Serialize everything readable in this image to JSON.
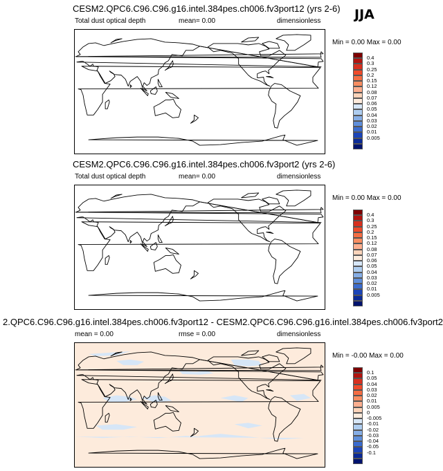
{
  "season_label": "JJA",
  "panels": [
    {
      "title": "CESM2.QPC6.C96.C96.g16.intel.384pes.ch006.fv3port12 (yrs 2-6)",
      "field_label": "Total dust optical depth",
      "stat_label": "mean=  0.00",
      "units": "dimensionless",
      "min_label": "Min =",
      "min_value": "0.00",
      "max_label": "Max =",
      "max_value": "0.00",
      "fill": "none",
      "colorbar_labels": [
        "0.4",
        "0.3",
        "0.25",
        "0.2",
        "0.15",
        "0.12",
        "0.08",
        "0.07",
        "0.06",
        "0.05",
        "0.04",
        "0.03",
        "0.02",
        "0.01",
        "0.005"
      ]
    },
    {
      "title": "CESM2.QPC6.C96.C96.g16.intel.384pes.ch006.fv3port2 (yrs 2-6)",
      "field_label": "Total dust optical depth",
      "stat_label": "mean=  0.00",
      "units": "dimensionless",
      "min_label": "Min =",
      "min_value": "0.00",
      "max_label": "Max =",
      "max_value": "0.00",
      "fill": "none",
      "colorbar_labels": [
        "0.4",
        "0.3",
        "0.25",
        "0.2",
        "0.15",
        "0.12",
        "0.08",
        "0.07",
        "0.06",
        "0.05",
        "0.04",
        "0.03",
        "0.02",
        "0.01",
        "0.005"
      ]
    },
    {
      "title": "2.QPC6.C96.C96.g16.intel.384pes.ch006.fv3port12 - CESM2.QPC6.C96.C96.g16.intel.384pes.ch006.fv3port2",
      "field_label": "mean =   0.00",
      "stat_label": "rmse =   0.00",
      "units": "dimensionless",
      "min_label": "Min =",
      "min_value": "-0.00",
      "max_label": "Max =",
      "max_value": "0.00",
      "fill": "diff",
      "colorbar_labels": [
        "0.1",
        "0.05",
        "0.04",
        "0.03",
        "0.02",
        "0.01",
        "0.005",
        "0",
        "-0.005",
        "-0.01",
        "-0.02",
        "-0.03",
        "-0.04",
        "-0.05",
        "-0.1"
      ]
    }
  ],
  "colorbar_colors": [
    "#7f0000",
    "#b2140f",
    "#d7301f",
    "#ef4a2a",
    "#f46d43",
    "#f88d61",
    "#fcae8f",
    "#fcd3b9",
    "#fdebdc",
    "#d6e6f7",
    "#aecdf0",
    "#86aee6",
    "#5f8fdb",
    "#3b6ccf",
    "#1c45b8",
    "#0b2a96",
    "#00136e"
  ],
  "chart_data": [
    {
      "type": "heatmap",
      "title": "CESM2.QPC6.C96.C96.g16.intel.384pes.ch006.fv3port12 (yrs 2-6)",
      "field": "Total dust optical depth",
      "units": "dimensionless",
      "mean": 0.0,
      "min": 0.0,
      "max": 0.0,
      "contour_levels": [
        0.005,
        0.01,
        0.02,
        0.03,
        0.04,
        0.05,
        0.06,
        0.07,
        0.08,
        0.12,
        0.15,
        0.2,
        0.25,
        0.3,
        0.4
      ]
    },
    {
      "type": "heatmap",
      "title": "CESM2.QPC6.C96.C96.g16.intel.384pes.ch006.fv3port2 (yrs 2-6)",
      "field": "Total dust optical depth",
      "units": "dimensionless",
      "mean": 0.0,
      "min": 0.0,
      "max": 0.0,
      "contour_levels": [
        0.005,
        0.01,
        0.02,
        0.03,
        0.04,
        0.05,
        0.06,
        0.07,
        0.08,
        0.12,
        0.15,
        0.2,
        0.25,
        0.3,
        0.4
      ]
    },
    {
      "type": "heatmap",
      "title": "2.QPC6.C96.C96.g16.intel.384pes.ch006.fv3port12 - CESM2.QPC6.C96.C96.g16.intel.384pes.ch006.fv3port2",
      "units": "dimensionless",
      "mean": 0.0,
      "rmse": 0.0,
      "min": -0.0,
      "max": 0.0,
      "contour_levels": [
        -0.1,
        -0.05,
        -0.04,
        -0.03,
        -0.02,
        -0.01,
        -0.005,
        0,
        0.005,
        0.01,
        0.02,
        0.03,
        0.04,
        0.05,
        0.1
      ]
    }
  ]
}
